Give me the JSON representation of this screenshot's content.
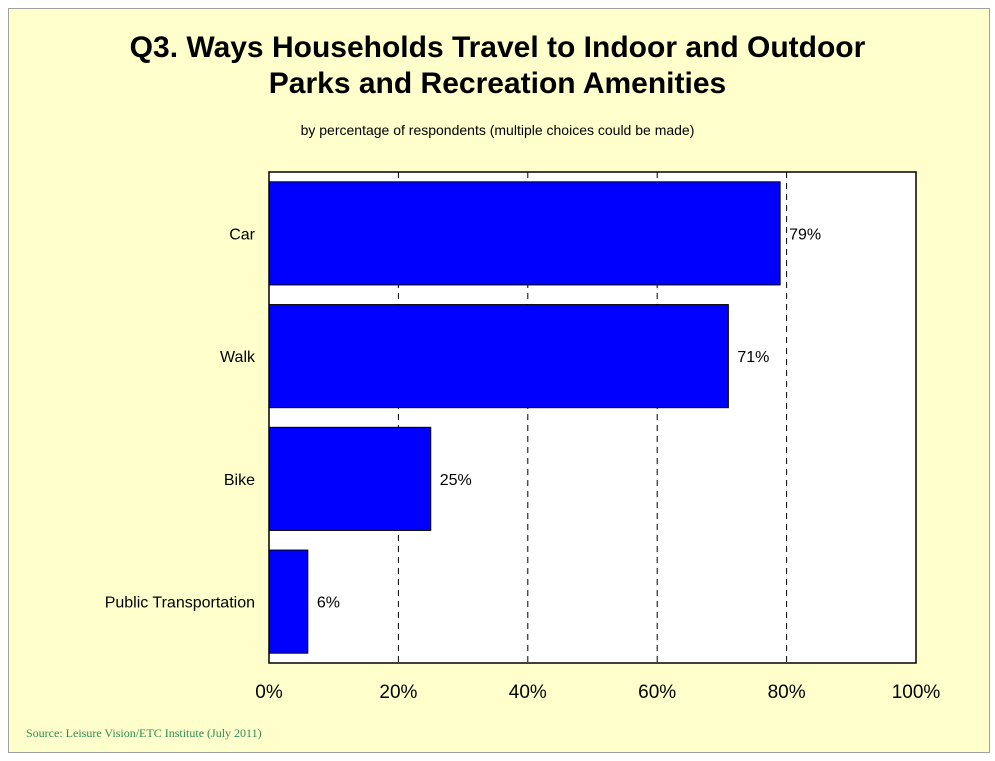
{
  "title_line1": "Q3. Ways Households Travel to Indoor and Outdoor",
  "title_line2": "Parks and Recreation Amenities",
  "subtitle": "by percentage of respondents (multiple choices could be made)",
  "source": "Source:  Leisure Vision/ETC Institute (July 2011)",
  "colors": {
    "background": "#ffffcc",
    "plot_area": "#ffffff",
    "bar": "#0000ff",
    "source_text": "#2e8b57"
  },
  "chart_data": {
    "type": "bar",
    "orientation": "horizontal",
    "categories": [
      "Car",
      "Walk",
      "Bike",
      "Public Transportation"
    ],
    "values": [
      79,
      71,
      25,
      6
    ],
    "value_labels": [
      "79%",
      "71%",
      "25%",
      "6%"
    ],
    "xlim": [
      0,
      100
    ],
    "x_ticks": [
      0,
      20,
      40,
      60,
      80,
      100
    ],
    "x_tick_labels": [
      "0%",
      "20%",
      "40%",
      "60%",
      "80%",
      "100%"
    ],
    "grid": "vertical dashed",
    "legend": "none"
  }
}
